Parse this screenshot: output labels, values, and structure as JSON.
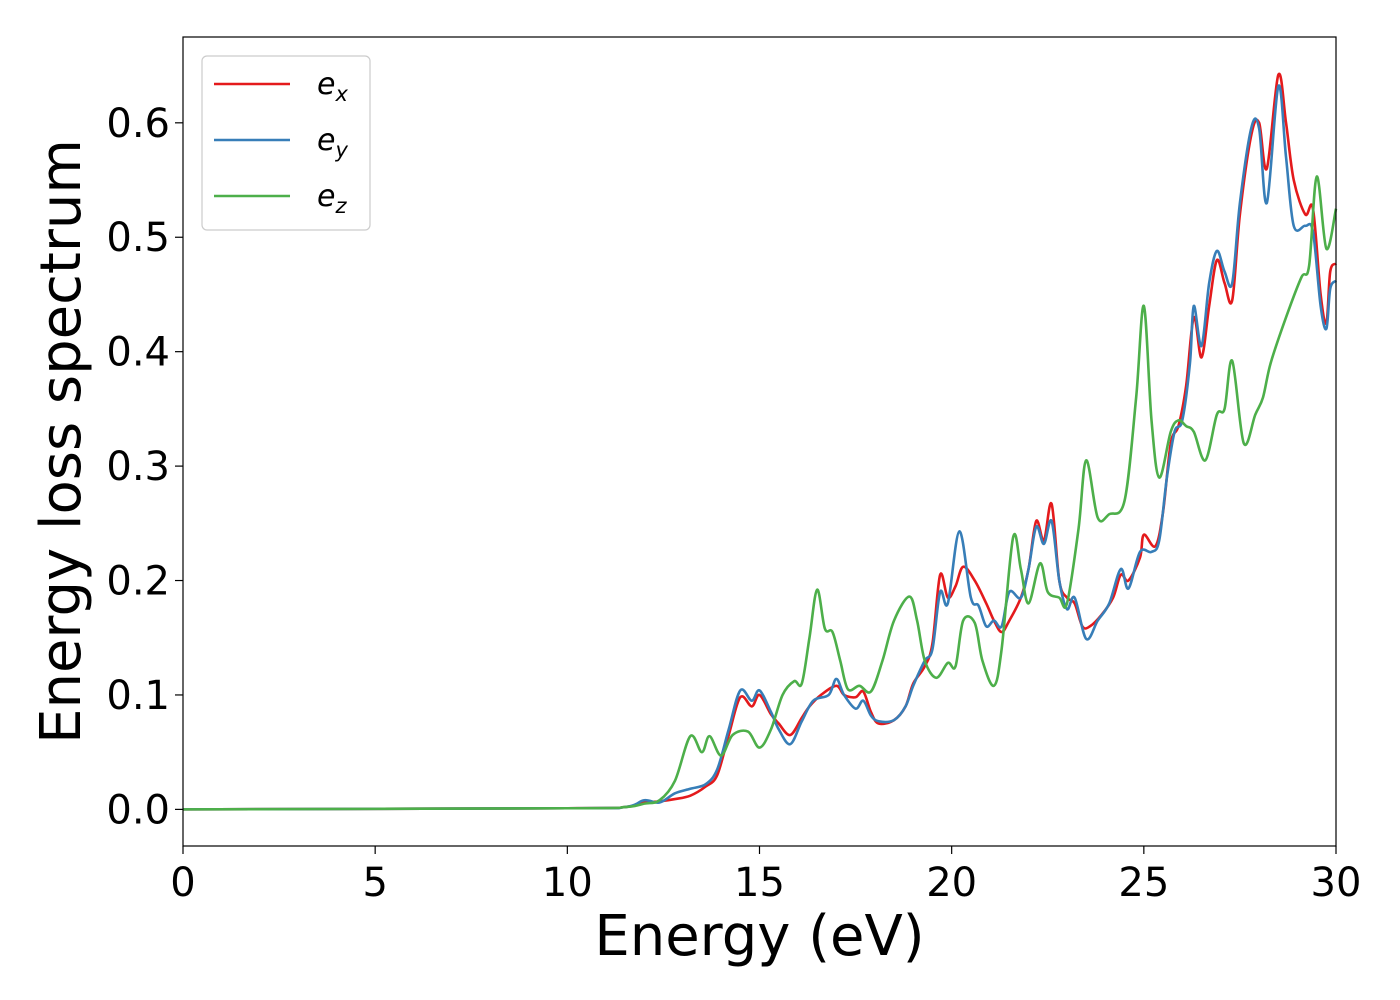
{
  "chart_data": {
    "type": "line",
    "xlabel": "Energy (eV)",
    "ylabel": "Energy loss spectrum",
    "xlim": [
      0,
      30
    ],
    "ylim": [
      -0.032,
      0.675
    ],
    "xticks": [
      0,
      5,
      10,
      15,
      20,
      25,
      30
    ],
    "xtick_labels": [
      "0",
      "5",
      "10",
      "15",
      "20",
      "25",
      "30"
    ],
    "yticks": [
      0.0,
      0.1,
      0.2,
      0.3,
      0.4,
      0.5,
      0.6
    ],
    "ytick_labels": [
      "0.0",
      "0.1",
      "0.2",
      "0.3",
      "0.4",
      "0.5",
      "0.6"
    ],
    "grid": false,
    "legend_position": "top-left",
    "series": [
      {
        "name": "e_x",
        "label_base": "e",
        "label_sub": "x",
        "color": "#e41a1c",
        "points": [
          [
            0,
            0
          ],
          [
            10,
            0.001
          ],
          [
            11.5,
            0.002
          ],
          [
            12,
            0.006
          ],
          [
            12.4,
            0.007
          ],
          [
            12.8,
            0.009
          ],
          [
            13.2,
            0.012
          ],
          [
            13.6,
            0.02
          ],
          [
            13.9,
            0.03
          ],
          [
            14.2,
            0.065
          ],
          [
            14.5,
            0.098
          ],
          [
            14.8,
            0.09
          ],
          [
            15.0,
            0.1
          ],
          [
            15.3,
            0.083
          ],
          [
            15.5,
            0.075
          ],
          [
            15.8,
            0.065
          ],
          [
            16.1,
            0.08
          ],
          [
            16.3,
            0.09
          ],
          [
            16.6,
            0.1
          ],
          [
            17.0,
            0.108
          ],
          [
            17.2,
            0.1
          ],
          [
            17.5,
            0.098
          ],
          [
            17.7,
            0.103
          ],
          [
            17.9,
            0.085
          ],
          [
            18.1,
            0.075
          ],
          [
            18.5,
            0.078
          ],
          [
            18.8,
            0.09
          ],
          [
            19.0,
            0.11
          ],
          [
            19.3,
            0.125
          ],
          [
            19.5,
            0.145
          ],
          [
            19.7,
            0.205
          ],
          [
            19.9,
            0.185
          ],
          [
            20.1,
            0.195
          ],
          [
            20.3,
            0.212
          ],
          [
            20.6,
            0.2
          ],
          [
            20.9,
            0.18
          ],
          [
            21.1,
            0.165
          ],
          [
            21.3,
            0.155
          ],
          [
            21.5,
            0.165
          ],
          [
            21.8,
            0.185
          ],
          [
            22.0,
            0.21
          ],
          [
            22.2,
            0.252
          ],
          [
            22.4,
            0.235
          ],
          [
            22.6,
            0.267
          ],
          [
            22.8,
            0.2
          ],
          [
            23.0,
            0.185
          ],
          [
            23.2,
            0.18
          ],
          [
            23.4,
            0.16
          ],
          [
            23.6,
            0.16
          ],
          [
            23.9,
            0.17
          ],
          [
            24.2,
            0.185
          ],
          [
            24.4,
            0.205
          ],
          [
            24.6,
            0.2
          ],
          [
            24.9,
            0.22
          ],
          [
            25.0,
            0.24
          ],
          [
            25.3,
            0.23
          ],
          [
            25.5,
            0.26
          ],
          [
            25.7,
            0.32
          ],
          [
            25.9,
            0.335
          ],
          [
            26.1,
            0.37
          ],
          [
            26.3,
            0.43
          ],
          [
            26.5,
            0.395
          ],
          [
            26.7,
            0.44
          ],
          [
            26.9,
            0.48
          ],
          [
            27.1,
            0.46
          ],
          [
            27.3,
            0.445
          ],
          [
            27.5,
            0.52
          ],
          [
            27.8,
            0.59
          ],
          [
            28.0,
            0.6
          ],
          [
            28.2,
            0.56
          ],
          [
            28.5,
            0.642
          ],
          [
            28.7,
            0.6
          ],
          [
            28.9,
            0.55
          ],
          [
            29.2,
            0.52
          ],
          [
            29.4,
            0.525
          ],
          [
            29.6,
            0.45
          ],
          [
            29.75,
            0.425
          ],
          [
            29.85,
            0.47
          ],
          [
            30.0,
            0.477
          ]
        ]
      },
      {
        "name": "e_y",
        "label_base": "e",
        "label_sub": "y",
        "color": "#377eb8",
        "points": [
          [
            0,
            0
          ],
          [
            10,
            0.001
          ],
          [
            11.5,
            0.002
          ],
          [
            12,
            0.008
          ],
          [
            12.4,
            0.006
          ],
          [
            12.8,
            0.014
          ],
          [
            13.2,
            0.018
          ],
          [
            13.6,
            0.022
          ],
          [
            13.9,
            0.035
          ],
          [
            14.2,
            0.07
          ],
          [
            14.5,
            0.104
          ],
          [
            14.8,
            0.095
          ],
          [
            15.0,
            0.104
          ],
          [
            15.3,
            0.085
          ],
          [
            15.5,
            0.07
          ],
          [
            15.8,
            0.057
          ],
          [
            16.1,
            0.077
          ],
          [
            16.4,
            0.095
          ],
          [
            16.8,
            0.1
          ],
          [
            17.0,
            0.114
          ],
          [
            17.2,
            0.1
          ],
          [
            17.5,
            0.088
          ],
          [
            17.7,
            0.095
          ],
          [
            17.9,
            0.082
          ],
          [
            18.1,
            0.077
          ],
          [
            18.5,
            0.078
          ],
          [
            18.8,
            0.09
          ],
          [
            19.0,
            0.108
          ],
          [
            19.3,
            0.13
          ],
          [
            19.5,
            0.14
          ],
          [
            19.7,
            0.19
          ],
          [
            19.9,
            0.18
          ],
          [
            20.2,
            0.243
          ],
          [
            20.5,
            0.185
          ],
          [
            20.7,
            0.178
          ],
          [
            20.9,
            0.16
          ],
          [
            21.1,
            0.165
          ],
          [
            21.3,
            0.16
          ],
          [
            21.5,
            0.19
          ],
          [
            21.8,
            0.185
          ],
          [
            22.0,
            0.21
          ],
          [
            22.2,
            0.247
          ],
          [
            22.4,
            0.232
          ],
          [
            22.6,
            0.252
          ],
          [
            22.8,
            0.2
          ],
          [
            23.0,
            0.175
          ],
          [
            23.2,
            0.185
          ],
          [
            23.5,
            0.149
          ],
          [
            23.8,
            0.165
          ],
          [
            24.1,
            0.18
          ],
          [
            24.4,
            0.21
          ],
          [
            24.6,
            0.193
          ],
          [
            24.9,
            0.225
          ],
          [
            25.2,
            0.225
          ],
          [
            25.4,
            0.235
          ],
          [
            25.6,
            0.29
          ],
          [
            25.8,
            0.33
          ],
          [
            26.0,
            0.34
          ],
          [
            26.2,
            0.39
          ],
          [
            26.3,
            0.44
          ],
          [
            26.5,
            0.405
          ],
          [
            26.7,
            0.46
          ],
          [
            26.9,
            0.488
          ],
          [
            27.1,
            0.47
          ],
          [
            27.3,
            0.46
          ],
          [
            27.5,
            0.53
          ],
          [
            27.8,
            0.596
          ],
          [
            28.0,
            0.595
          ],
          [
            28.2,
            0.53
          ],
          [
            28.5,
            0.632
          ],
          [
            28.7,
            0.57
          ],
          [
            28.9,
            0.51
          ],
          [
            29.2,
            0.51
          ],
          [
            29.4,
            0.505
          ],
          [
            29.6,
            0.44
          ],
          [
            29.75,
            0.42
          ],
          [
            29.85,
            0.455
          ],
          [
            30.0,
            0.462
          ]
        ]
      },
      {
        "name": "e_z",
        "label_base": "e",
        "label_sub": "z",
        "color": "#4daf4a",
        "points": [
          [
            0,
            0
          ],
          [
            10,
            0.001
          ],
          [
            11.5,
            0.002
          ],
          [
            12,
            0.005
          ],
          [
            12.4,
            0.008
          ],
          [
            12.8,
            0.025
          ],
          [
            13.2,
            0.064
          ],
          [
            13.5,
            0.05
          ],
          [
            13.7,
            0.064
          ],
          [
            14.0,
            0.047
          ],
          [
            14.3,
            0.065
          ],
          [
            14.7,
            0.068
          ],
          [
            15.0,
            0.054
          ],
          [
            15.3,
            0.07
          ],
          [
            15.6,
            0.1
          ],
          [
            15.9,
            0.112
          ],
          [
            16.1,
            0.11
          ],
          [
            16.3,
            0.15
          ],
          [
            16.5,
            0.192
          ],
          [
            16.7,
            0.158
          ],
          [
            16.9,
            0.155
          ],
          [
            17.1,
            0.13
          ],
          [
            17.3,
            0.105
          ],
          [
            17.6,
            0.108
          ],
          [
            17.9,
            0.103
          ],
          [
            18.2,
            0.13
          ],
          [
            18.5,
            0.165
          ],
          [
            18.9,
            0.186
          ],
          [
            19.1,
            0.165
          ],
          [
            19.3,
            0.13
          ],
          [
            19.6,
            0.115
          ],
          [
            19.9,
            0.128
          ],
          [
            20.1,
            0.125
          ],
          [
            20.3,
            0.165
          ],
          [
            20.6,
            0.163
          ],
          [
            20.8,
            0.13
          ],
          [
            21.1,
            0.108
          ],
          [
            21.3,
            0.14
          ],
          [
            21.6,
            0.238
          ],
          [
            21.8,
            0.21
          ],
          [
            22.0,
            0.18
          ],
          [
            22.3,
            0.215
          ],
          [
            22.5,
            0.19
          ],
          [
            22.8,
            0.185
          ],
          [
            23.0,
            0.18
          ],
          [
            23.3,
            0.245
          ],
          [
            23.5,
            0.305
          ],
          [
            23.8,
            0.255
          ],
          [
            24.1,
            0.258
          ],
          [
            24.5,
            0.27
          ],
          [
            24.8,
            0.36
          ],
          [
            25.0,
            0.44
          ],
          [
            25.2,
            0.34
          ],
          [
            25.4,
            0.29
          ],
          [
            25.7,
            0.33
          ],
          [
            25.9,
            0.34
          ],
          [
            26.1,
            0.335
          ],
          [
            26.3,
            0.33
          ],
          [
            26.6,
            0.305
          ],
          [
            26.9,
            0.345
          ],
          [
            27.1,
            0.35
          ],
          [
            27.3,
            0.392
          ],
          [
            27.6,
            0.32
          ],
          [
            27.9,
            0.345
          ],
          [
            28.1,
            0.36
          ],
          [
            28.3,
            0.39
          ],
          [
            28.7,
            0.43
          ],
          [
            29.1,
            0.465
          ],
          [
            29.3,
            0.475
          ],
          [
            29.5,
            0.553
          ],
          [
            29.75,
            0.49
          ],
          [
            30.0,
            0.525
          ]
        ]
      }
    ]
  }
}
